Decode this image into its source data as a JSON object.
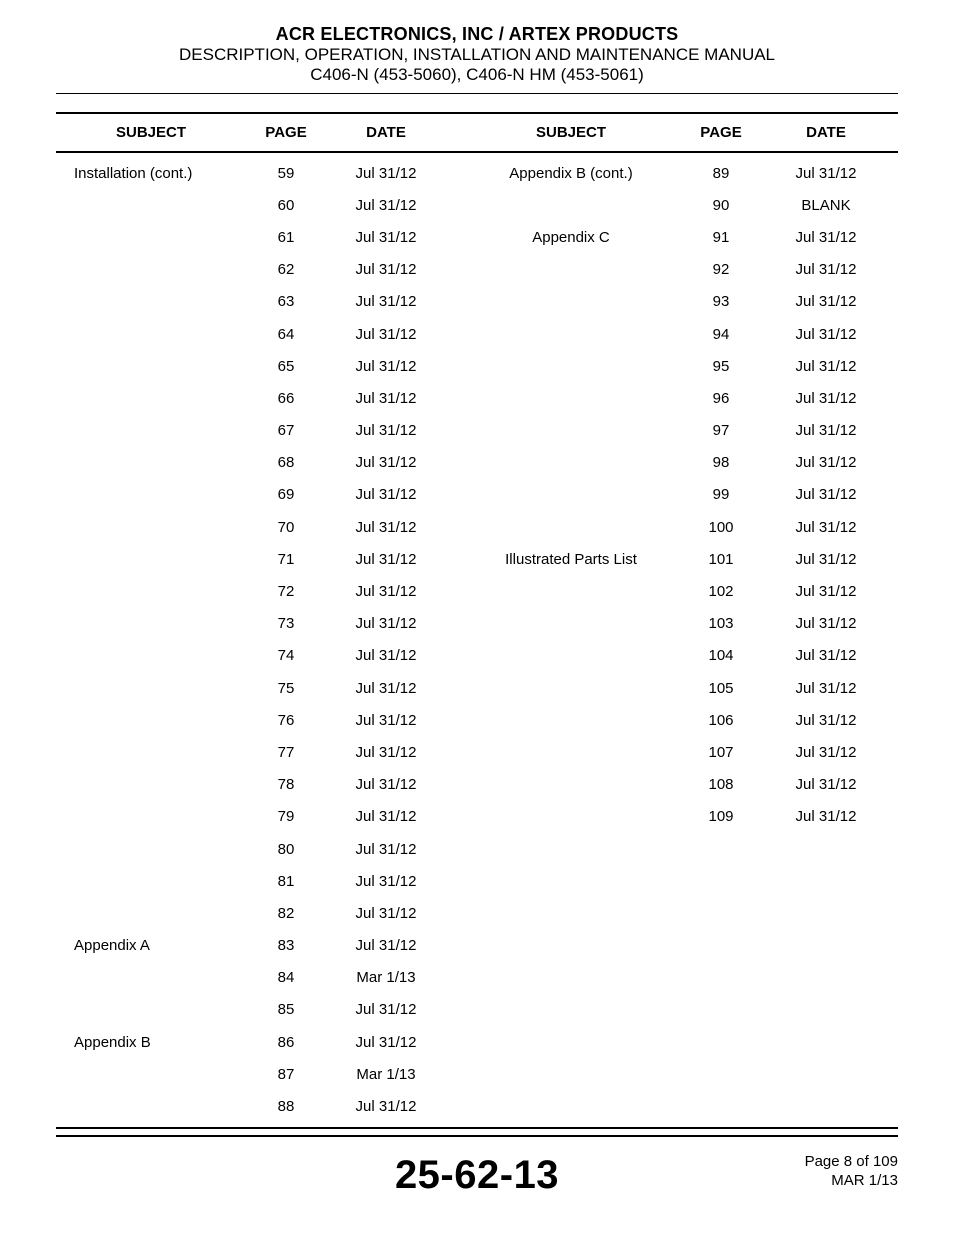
{
  "header": {
    "line1": "ACR ELECTRONICS, INC / ARTEX PRODUCTS",
    "line2": "DESCRIPTION, OPERATION, INSTALLATION AND MAINTENANCE MANUAL",
    "line3": "C406-N (453-5060), C406-N HM (453-5061)"
  },
  "columns": {
    "subject": "SUBJECT",
    "page": "PAGE",
    "date": "DATE"
  },
  "rows": [
    {
      "ls": "Installation (cont.)",
      "lp": "59",
      "ld": "Jul 31/12",
      "rs": "Appendix B (cont.)",
      "rp": "89",
      "rd": "Jul 31/12"
    },
    {
      "ls": "",
      "lp": "60",
      "ld": "Jul 31/12",
      "rs": "",
      "rp": "90",
      "rd": "BLANK"
    },
    {
      "ls": "",
      "lp": "61",
      "ld": "Jul 31/12",
      "rs": "Appendix C",
      "rp": "91",
      "rd": "Jul 31/12"
    },
    {
      "ls": "",
      "lp": "62",
      "ld": "Jul 31/12",
      "rs": "",
      "rp": "92",
      "rd": "Jul 31/12"
    },
    {
      "ls": "",
      "lp": "63",
      "ld": "Jul 31/12",
      "rs": "",
      "rp": "93",
      "rd": "Jul 31/12"
    },
    {
      "ls": "",
      "lp": "64",
      "ld": "Jul 31/12",
      "rs": "",
      "rp": "94",
      "rd": "Jul 31/12"
    },
    {
      "ls": "",
      "lp": "65",
      "ld": "Jul 31/12",
      "rs": "",
      "rp": "95",
      "rd": "Jul 31/12"
    },
    {
      "ls": "",
      "lp": "66",
      "ld": "Jul 31/12",
      "rs": "",
      "rp": "96",
      "rd": "Jul 31/12"
    },
    {
      "ls": "",
      "lp": "67",
      "ld": "Jul 31/12",
      "rs": "",
      "rp": "97",
      "rd": "Jul 31/12"
    },
    {
      "ls": "",
      "lp": "68",
      "ld": "Jul 31/12",
      "rs": "",
      "rp": "98",
      "rd": "Jul 31/12"
    },
    {
      "ls": "",
      "lp": "69",
      "ld": "Jul 31/12",
      "rs": "",
      "rp": "99",
      "rd": "Jul 31/12"
    },
    {
      "ls": "",
      "lp": "70",
      "ld": "Jul 31/12",
      "rs": "",
      "rp": "100",
      "rd": "Jul 31/12"
    },
    {
      "ls": "",
      "lp": "71",
      "ld": "Jul 31/12",
      "rs": "Illustrated Parts List",
      "rp": "101",
      "rd": "Jul 31/12"
    },
    {
      "ls": "",
      "lp": "72",
      "ld": "Jul 31/12",
      "rs": "",
      "rp": "102",
      "rd": "Jul 31/12"
    },
    {
      "ls": "",
      "lp": "73",
      "ld": "Jul 31/12",
      "rs": "",
      "rp": "103",
      "rd": "Jul 31/12"
    },
    {
      "ls": "",
      "lp": "74",
      "ld": "Jul 31/12",
      "rs": "",
      "rp": "104",
      "rd": "Jul 31/12"
    },
    {
      "ls": "",
      "lp": "75",
      "ld": "Jul 31/12",
      "rs": "",
      "rp": "105",
      "rd": "Jul 31/12"
    },
    {
      "ls": "",
      "lp": "76",
      "ld": "Jul 31/12",
      "rs": "",
      "rp": "106",
      "rd": "Jul 31/12"
    },
    {
      "ls": "",
      "lp": "77",
      "ld": "Jul 31/12",
      "rs": "",
      "rp": "107",
      "rd": "Jul 31/12"
    },
    {
      "ls": "",
      "lp": "78",
      "ld": "Jul 31/12",
      "rs": "",
      "rp": "108",
      "rd": "Jul 31/12"
    },
    {
      "ls": "",
      "lp": "79",
      "ld": "Jul 31/12",
      "rs": "",
      "rp": "109",
      "rd": "Jul 31/12"
    },
    {
      "ls": "",
      "lp": "80",
      "ld": "Jul 31/12",
      "rs": "",
      "rp": "",
      "rd": ""
    },
    {
      "ls": "",
      "lp": "81",
      "ld": "Jul 31/12",
      "rs": "",
      "rp": "",
      "rd": ""
    },
    {
      "ls": "",
      "lp": "82",
      "ld": "Jul 31/12",
      "rs": "",
      "rp": "",
      "rd": ""
    },
    {
      "ls": "Appendix A",
      "lp": "83",
      "ld": "Jul 31/12",
      "rs": "",
      "rp": "",
      "rd": ""
    },
    {
      "ls": "",
      "lp": "84",
      "ld": "Mar 1/13",
      "rs": "",
      "rp": "",
      "rd": ""
    },
    {
      "ls": "",
      "lp": "85",
      "ld": "Jul 31/12",
      "rs": "",
      "rp": "",
      "rd": ""
    },
    {
      "ls": "Appendix B",
      "lp": "86",
      "ld": "Jul 31/12",
      "rs": "",
      "rp": "",
      "rd": ""
    },
    {
      "ls": "",
      "lp": "87",
      "ld": "Mar 1/13",
      "rs": "",
      "rp": "",
      "rd": ""
    },
    {
      "ls": "",
      "lp": "88",
      "ld": "Jul 31/12",
      "rs": "",
      "rp": "",
      "rd": ""
    }
  ],
  "footer": {
    "code": "25-62-13",
    "page_label": "Page 8 of 109",
    "date": "MAR 1/13"
  }
}
